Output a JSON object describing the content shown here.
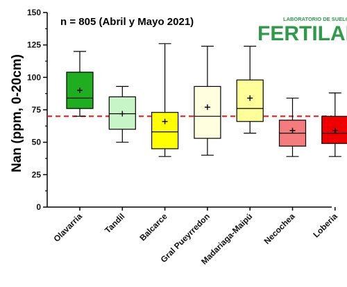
{
  "chart_data": {
    "type": "box",
    "ylabel": "Nan (ppm, 0-20cm)",
    "annotation": "n = 805 (Abril y Mayo 2021)",
    "ylim": [
      0,
      150
    ],
    "yticks": [
      0,
      25,
      50,
      75,
      100,
      125,
      150
    ],
    "reference_line": {
      "value": 70,
      "color": "#e02020",
      "style": "dashed"
    },
    "categories": [
      "Olavarria",
      "Tandil",
      "Balcarce",
      "Gral Pueyrredon",
      "Madariaga-Maipú",
      "Necochea",
      "Loberia"
    ],
    "boxes": [
      {
        "min": 70,
        "q1": 76,
        "median": 84,
        "q3": 104,
        "max": 120,
        "mean": 90,
        "color": "#1fae1f"
      },
      {
        "min": 50,
        "q1": 60,
        "median": 72,
        "q3": 85,
        "max": 93,
        "mean": 72,
        "color": "#c8f5c8"
      },
      {
        "min": 39,
        "q1": 45,
        "median": 58,
        "q3": 73,
        "max": 126,
        "mean": 66,
        "color": "#ffff00"
      },
      {
        "min": 40,
        "q1": 53,
        "median": 70,
        "q3": 93,
        "max": 124,
        "mean": 77,
        "color": "#ffffe0"
      },
      {
        "min": 57,
        "q1": 66,
        "median": 76,
        "q3": 98,
        "max": 124,
        "mean": 84,
        "color": "#ffff99"
      },
      {
        "min": 39,
        "q1": 47,
        "median": 57,
        "q3": 67,
        "max": 84,
        "mean": 59,
        "color": "#f47c7c"
      },
      {
        "min": 39,
        "q1": 49,
        "median": 57,
        "q3": 70,
        "max": 88,
        "mean": 59,
        "color": "#ee0000"
      }
    ]
  },
  "logo": {
    "top_text": "LABORATORIO DE SUELOS",
    "main_text": "FERTILAB",
    "color": "#2e9b4a"
  }
}
